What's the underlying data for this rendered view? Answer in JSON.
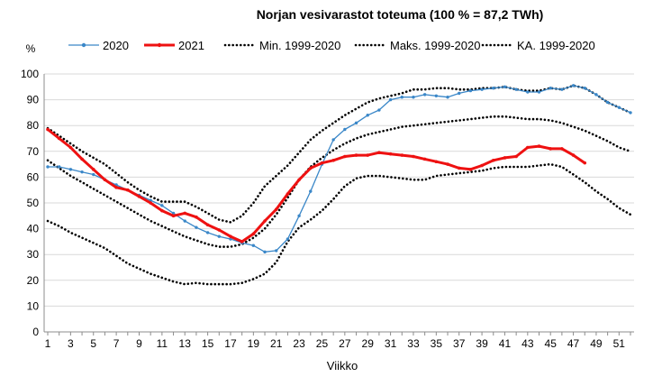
{
  "chart_data": {
    "type": "line",
    "title": "Norjan vesivarastot toteuma (100 % = 87,2 TWh)",
    "ylabel": "%",
    "xlabel": "Viikko",
    "ylim": [
      0,
      100
    ],
    "yticks": [
      0,
      10,
      20,
      30,
      40,
      50,
      60,
      70,
      80,
      90,
      100
    ],
    "xlim": [
      1,
      52
    ],
    "xticks": [
      1,
      3,
      5,
      7,
      9,
      11,
      13,
      15,
      17,
      19,
      21,
      23,
      25,
      27,
      29,
      31,
      33,
      35,
      37,
      39,
      41,
      43,
      45,
      47,
      49,
      51
    ],
    "grid": true,
    "legend": "top",
    "series": [
      {
        "name": "2020",
        "color": "#3a87c8",
        "style": "solid-marker",
        "x": [
          1,
          2,
          3,
          4,
          5,
          6,
          7,
          8,
          9,
          10,
          11,
          12,
          13,
          14,
          15,
          16,
          17,
          18,
          19,
          20,
          21,
          22,
          23,
          24,
          25,
          26,
          27,
          28,
          29,
          30,
          31,
          32,
          33,
          34,
          35,
          36,
          37,
          38,
          39,
          40,
          41,
          42,
          43,
          44,
          45,
          46,
          47,
          48,
          49,
          50,
          51,
          52
        ],
        "values": [
          64,
          64,
          63,
          62,
          61,
          59,
          57,
          55,
          53,
          51,
          49,
          46,
          43,
          40.5,
          38.5,
          37,
          36,
          34.5,
          33.5,
          31,
          31.5,
          36,
          45,
          54.5,
          65,
          74.5,
          78.5,
          81,
          84,
          86,
          90,
          91,
          91,
          92,
          91.5,
          91,
          92.5,
          93.5,
          94,
          94.5,
          95,
          94,
          93,
          93,
          94.5,
          94,
          95.5,
          94.5,
          92,
          89,
          87,
          85
        ]
      },
      {
        "name": "2021",
        "color": "#ee1111",
        "style": "thick-marker",
        "x": [
          1,
          2,
          3,
          4,
          5,
          6,
          7,
          8,
          9,
          10,
          11,
          12,
          13,
          14,
          15,
          16,
          17,
          18,
          19,
          20,
          21,
          22,
          23,
          24,
          25,
          26,
          27,
          28,
          29,
          30,
          31,
          32,
          33,
          34,
          35,
          36,
          37,
          38,
          39,
          40,
          41,
          42,
          43,
          44,
          45,
          46,
          47,
          48
        ],
        "values": [
          78.5,
          75,
          71.5,
          67,
          63,
          59,
          56,
          55,
          52.5,
          50,
          47,
          45,
          46,
          44.5,
          41.5,
          39.5,
          37,
          35,
          38,
          43,
          47.5,
          53.5,
          59,
          63.5,
          65.5,
          66.5,
          68,
          68.5,
          68.5,
          69.5,
          69,
          68.5,
          68,
          67,
          66,
          65,
          63.5,
          63,
          64.5,
          66.5,
          67.5,
          68,
          71.5,
          72,
          71,
          71,
          68.5,
          65.5
        ]
      },
      {
        "name": "Min. 1999-2020",
        "color": "#000000",
        "style": "dotted",
        "x": [
          1,
          2,
          3,
          4,
          5,
          6,
          7,
          8,
          9,
          10,
          11,
          12,
          13,
          14,
          15,
          16,
          17,
          18,
          19,
          20,
          21,
          22,
          23,
          24,
          25,
          26,
          27,
          28,
          29,
          30,
          31,
          32,
          33,
          34,
          35,
          36,
          37,
          38,
          39,
          40,
          41,
          42,
          43,
          44,
          45,
          46,
          47,
          48,
          49,
          50,
          51,
          52
        ],
        "values": [
          43,
          41,
          38.5,
          36.5,
          34.5,
          32.5,
          29.5,
          26.5,
          24.5,
          22.5,
          21,
          19.5,
          18.5,
          19,
          18.5,
          18.5,
          18.5,
          19,
          20.5,
          22.5,
          27,
          35,
          40.5,
          43.5,
          47,
          51.5,
          56.5,
          59.5,
          60.5,
          60.5,
          60,
          59.5,
          59,
          59,
          60.5,
          61,
          61.5,
          62,
          62.5,
          63.5,
          64,
          64,
          64,
          64.5,
          65,
          64,
          61,
          58,
          54.5,
          51.5,
          48,
          45.5
        ]
      },
      {
        "name": "Maks. 1999-2020",
        "color": "#000000",
        "style": "dotted",
        "x": [
          1,
          2,
          3,
          4,
          5,
          6,
          7,
          8,
          9,
          10,
          11,
          12,
          13,
          14,
          15,
          16,
          17,
          18,
          19,
          20,
          21,
          22,
          23,
          24,
          25,
          26,
          27,
          28,
          29,
          30,
          31,
          32,
          33,
          34,
          35,
          36,
          37,
          38,
          39,
          40,
          41,
          42,
          43,
          44,
          45,
          46,
          47,
          48,
          49,
          50,
          51,
          52
        ],
        "values": [
          79,
          76,
          73,
          70,
          67.5,
          65,
          61.5,
          58,
          55,
          52.5,
          50.5,
          50.5,
          50.5,
          48.5,
          46,
          43.5,
          42.5,
          45,
          50,
          56.5,
          60.5,
          64.5,
          69.5,
          74.5,
          78,
          81,
          84,
          86.5,
          89,
          90.5,
          91.5,
          92.5,
          94,
          94,
          94.5,
          94.5,
          94,
          94,
          94.5,
          94.5,
          95,
          94,
          93.5,
          93.5,
          94.5,
          94,
          95.5,
          94.5,
          92,
          89,
          87,
          85
        ]
      },
      {
        "name": "KA. 1999-2020",
        "color": "#000000",
        "style": "dotted",
        "x": [
          1,
          2,
          3,
          4,
          5,
          6,
          7,
          8,
          9,
          10,
          11,
          12,
          13,
          14,
          15,
          16,
          17,
          18,
          19,
          20,
          21,
          22,
          23,
          24,
          25,
          26,
          27,
          28,
          29,
          30,
          31,
          32,
          33,
          34,
          35,
          36,
          37,
          38,
          39,
          40,
          41,
          42,
          43,
          44,
          45,
          46,
          47,
          48,
          49,
          50,
          51,
          52
        ],
        "values": [
          66.5,
          63.5,
          60.5,
          58,
          55.5,
          53,
          50.5,
          48,
          45.5,
          43,
          41,
          39,
          37,
          35.5,
          34,
          33,
          33,
          34,
          36.5,
          40,
          45.5,
          52,
          59,
          64,
          67.5,
          70.5,
          73,
          75,
          76.5,
          77.5,
          78.5,
          79.5,
          80,
          80.5,
          81,
          81.5,
          82,
          82.5,
          83,
          83.5,
          83.5,
          83,
          82.5,
          82.5,
          82,
          81,
          79.5,
          78,
          76,
          74,
          71.5,
          70
        ]
      }
    ]
  }
}
